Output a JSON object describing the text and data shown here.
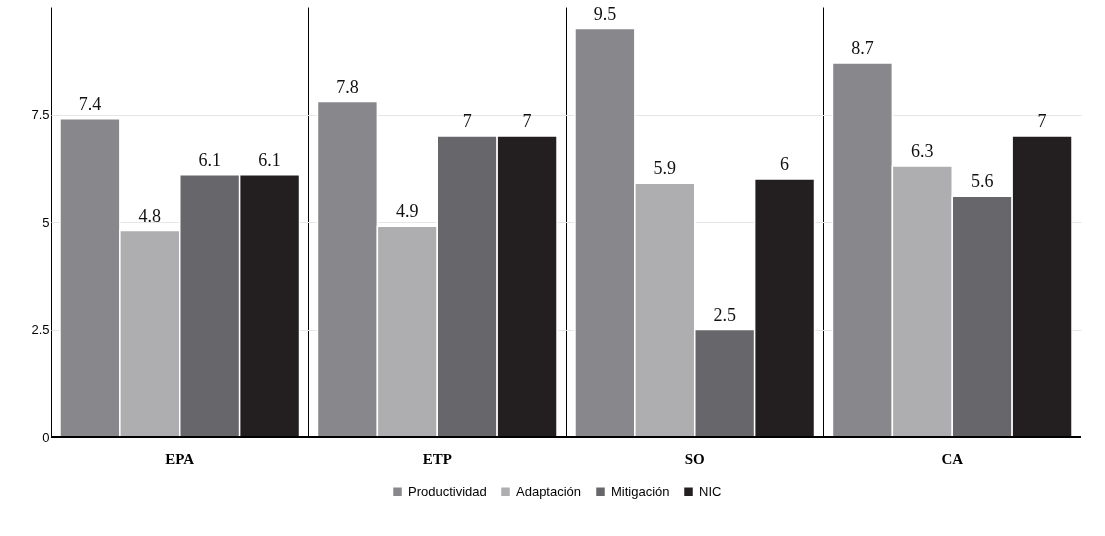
{
  "chart_data": {
    "type": "bar",
    "categories": [
      "EPA",
      "ETP",
      "SO",
      "CA"
    ],
    "series": [
      {
        "name": "Productividad",
        "color": "#88888c",
        "values": [
          7.4,
          7.8,
          9.5,
          8.7
        ]
      },
      {
        "name": "Adaptación",
        "color": "#aeaeb0",
        "values": [
          4.8,
          4.9,
          5.9,
          6.3
        ]
      },
      {
        "name": "Mitigación",
        "color": "#67676b",
        "values": [
          6.1,
          7,
          2.5,
          5.6
        ]
      },
      {
        "name": "NIC",
        "color": "#231f20",
        "values": [
          6.1,
          7,
          6,
          7
        ]
      }
    ],
    "ylim": [
      0,
      10
    ],
    "yticks": [
      0,
      2.5,
      5,
      7.5
    ],
    "grid": true,
    "legend": "bottom",
    "data_labels": true
  }
}
